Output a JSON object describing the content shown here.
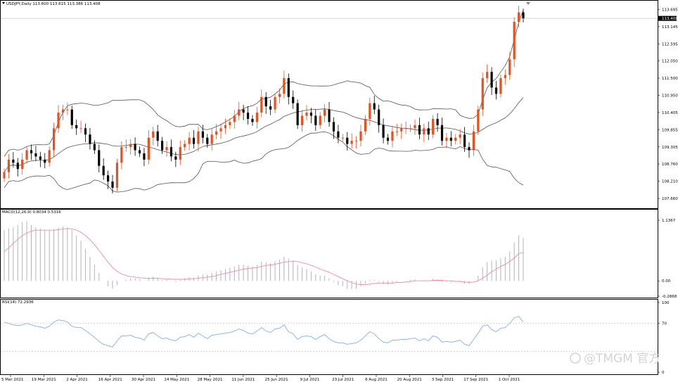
{
  "header": {
    "symbol_line": "USDJPY,Daily  113.600 113.615 113.386 113.408",
    "macd_label": "MACD(12,26,9) 0.8034 0.5316",
    "rsi_label": "RSI(14) 72.2936"
  },
  "watermark": "@TMGM 官方",
  "colors": {
    "bull": "#e8501e",
    "bear": "#000000",
    "band": "#555555",
    "signal": "#f08ca0",
    "rsi": "#8ab8ec",
    "grid": "#c8c8c8",
    "level": "#c8c8c8"
  },
  "chart_data": [
    {
      "type": "candlestick",
      "title": "USDJPY,Daily",
      "ohlc_last": {
        "open": 113.6,
        "high": 113.615,
        "low": 113.386,
        "close": 113.408
      },
      "price_ticks": [
        "113.695",
        "113.408",
        "113.145",
        "112.595",
        "112.050",
        "111.500",
        "110.950",
        "110.405",
        "109.855",
        "109.305",
        "108.760",
        "108.210",
        "107.660"
      ],
      "ylim": [
        107.37,
        113.95
      ],
      "current_price": 113.408,
      "x_tick_labels": [
        "5 Mar 2021",
        "19 Mar 2021",
        "2 Apr 2021",
        "16 Apr 2021",
        "30 Apr 2021",
        "14 May 2021",
        "28 May 2021",
        "11 Jun 2021",
        "25 Jun 2021",
        "9 Jul 2021",
        "23 Jul 2021",
        "6 Aug 2021",
        "20 Aug 2021",
        "3 Sep 2021",
        "17 Sep 2021",
        "1 Oct 2021"
      ],
      "bollinger": true,
      "closes": [
        108.5,
        108.9,
        108.8,
        108.6,
        108.9,
        109.2,
        109.1,
        109.0,
        108.9,
        108.8,
        109.2,
        109.9,
        110.4,
        110.5,
        110.5,
        110.0,
        109.9,
        109.9,
        109.7,
        109.4,
        109.2,
        108.7,
        108.4,
        108.2,
        108.0,
        108.8,
        109.3,
        109.3,
        109.4,
        109.2,
        109.1,
        108.9,
        109.6,
        109.8,
        109.5,
        109.2,
        109.3,
        109.0,
        108.9,
        109.3,
        109.4,
        109.6,
        109.4,
        109.8,
        109.6,
        109.4,
        109.7,
        109.8,
        109.9,
        110.0,
        110.1,
        110.3,
        110.5,
        110.4,
        110.2,
        110.1,
        110.4,
        110.9,
        110.6,
        110.5,
        110.9,
        111.0,
        111.5,
        110.9,
        110.7,
        110.0,
        110.3,
        110.4,
        110.3,
        110.0,
        110.3,
        110.5,
        110.1,
        109.8,
        109.6,
        109.6,
        109.4,
        109.5,
        109.5,
        109.8,
        110.2,
        110.7,
        110.5,
        110.0,
        109.6,
        109.5,
        109.8,
        109.8,
        109.9,
        109.9,
        109.9,
        110.0,
        109.7,
        109.9,
        109.7,
        110.2,
        110.0,
        109.5,
        109.6,
        109.5,
        109.6,
        109.7,
        109.3,
        109.2,
        109.8,
        110.5,
        111.5,
        111.7,
        111.2,
        111.0,
        111.5,
        111.6,
        112.1,
        113.3,
        113.6,
        113.4
      ],
      "macd": {
        "hist_ylim": [
          -0.2868,
          1.1367
        ],
        "histogram": [
          0.95,
          0.98,
          1.0,
          1.05,
          1.1,
          1.12,
          1.05,
          1.0,
          0.98,
          0.95,
          0.95,
          0.97,
          1.0,
          1.02,
          1.0,
          0.95,
          0.85,
          0.75,
          0.6,
          0.45,
          0.3,
          0.15,
          0.0,
          -0.1,
          -0.15,
          -0.08,
          0.0,
          0.02,
          0.05,
          0.05,
          0.03,
          0.0,
          0.05,
          0.08,
          0.05,
          0.02,
          0.03,
          0.0,
          -0.02,
          0.02,
          0.05,
          0.07,
          0.06,
          0.1,
          0.12,
          0.12,
          0.15,
          0.18,
          0.2,
          0.22,
          0.24,
          0.27,
          0.3,
          0.3,
          0.28,
          0.27,
          0.3,
          0.36,
          0.35,
          0.33,
          0.37,
          0.4,
          0.45,
          0.42,
          0.38,
          0.3,
          0.25,
          0.22,
          0.18,
          0.12,
          0.1,
          0.1,
          0.05,
          -0.02,
          -0.08,
          -0.1,
          -0.15,
          -0.15,
          -0.15,
          -0.1,
          -0.05,
          0.02,
          0.02,
          -0.02,
          -0.06,
          -0.07,
          -0.04,
          -0.02,
          0.0,
          0.0,
          0.02,
          0.03,
          0.0,
          0.02,
          0.0,
          0.04,
          0.03,
          -0.02,
          -0.02,
          -0.03,
          -0.02,
          -0.01,
          -0.05,
          -0.06,
          0.0,
          0.1,
          0.25,
          0.35,
          0.38,
          0.38,
          0.42,
          0.45,
          0.55,
          0.72,
          0.85,
          0.8034
        ],
        "signal": [
          0.55,
          0.62,
          0.7,
          0.78,
          0.85,
          0.9,
          0.93,
          0.95,
          0.95,
          0.95,
          0.95,
          0.95,
          0.96,
          0.97,
          0.98,
          0.97,
          0.95,
          0.91,
          0.85,
          0.77,
          0.68,
          0.57,
          0.46,
          0.35,
          0.25,
          0.18,
          0.13,
          0.1,
          0.08,
          0.07,
          0.06,
          0.05,
          0.05,
          0.05,
          0.05,
          0.04,
          0.04,
          0.03,
          0.03,
          0.03,
          0.03,
          0.04,
          0.04,
          0.05,
          0.06,
          0.07,
          0.08,
          0.1,
          0.12,
          0.14,
          0.16,
          0.18,
          0.2,
          0.22,
          0.23,
          0.24,
          0.25,
          0.27,
          0.29,
          0.3,
          0.31,
          0.33,
          0.35,
          0.36,
          0.37,
          0.36,
          0.34,
          0.32,
          0.29,
          0.26,
          0.22,
          0.19,
          0.16,
          0.12,
          0.08,
          0.04,
          0.0,
          -0.03,
          -0.06,
          -0.07,
          -0.07,
          -0.06,
          -0.05,
          -0.04,
          -0.04,
          -0.04,
          -0.04,
          -0.03,
          -0.03,
          -0.02,
          -0.01,
          0.0,
          0.0,
          0.0,
          0.0,
          0.01,
          0.01,
          0.01,
          0.0,
          0.0,
          -0.01,
          -0.01,
          -0.02,
          -0.03,
          -0.02,
          0.0,
          0.05,
          0.11,
          0.17,
          0.22,
          0.27,
          0.31,
          0.36,
          0.43,
          0.51,
          0.5316
        ]
      },
      "rsi": {
        "ylim": [
          0,
          100
        ],
        "levels": [
          70,
          30
        ],
        "values": [
          72,
          70,
          68,
          67,
          68,
          70,
          68,
          66,
          65,
          63,
          66,
          72,
          75,
          74,
          72,
          66,
          64,
          64,
          60,
          55,
          50,
          44,
          40,
          38,
          36,
          45,
          52,
          52,
          53,
          50,
          49,
          46,
          55,
          57,
          52,
          48,
          49,
          46,
          45,
          50,
          51,
          54,
          50,
          56,
          52,
          48,
          53,
          54,
          55,
          56,
          57,
          59,
          62,
          60,
          56,
          55,
          59,
          64,
          59,
          57,
          62,
          63,
          68,
          58,
          55,
          47,
          51,
          52,
          51,
          47,
          51,
          54,
          48,
          44,
          42,
          42,
          40,
          41,
          42,
          46,
          52,
          58,
          55,
          48,
          43,
          42,
          46,
          46,
          47,
          47,
          48,
          49,
          45,
          48,
          45,
          52,
          50,
          43,
          44,
          43,
          44,
          46,
          40,
          38,
          47,
          56,
          66,
          68,
          61,
          58,
          63,
          64,
          70,
          78,
          80,
          72.2936
        ]
      }
    }
  ]
}
